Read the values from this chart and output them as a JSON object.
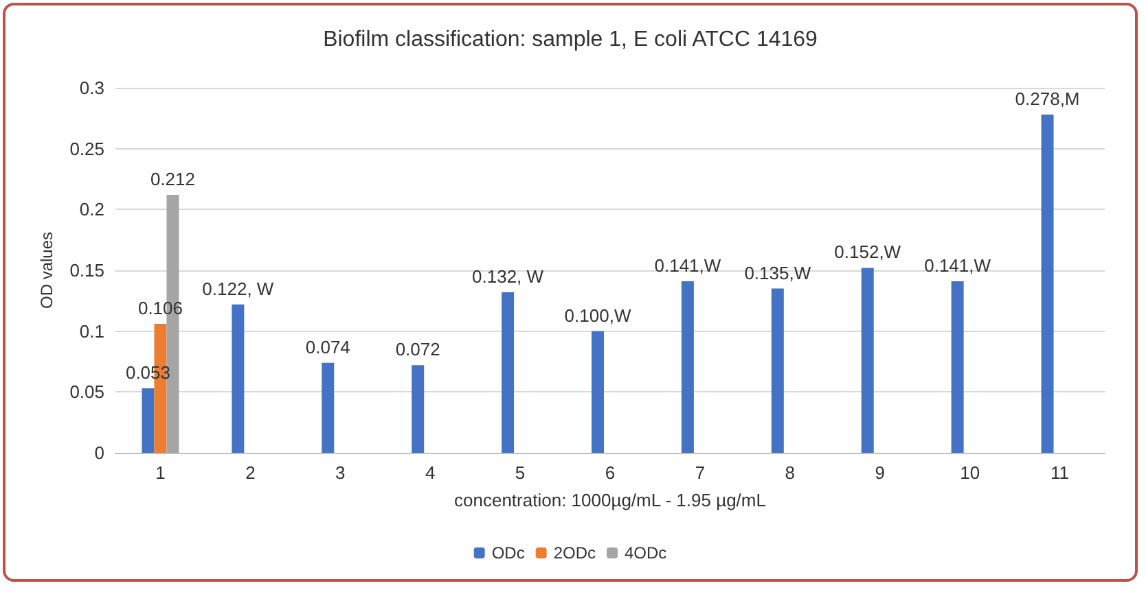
{
  "chart_data": {
    "type": "bar",
    "title": "Biofilm classification: sample 1, E coli ATCC 14169",
    "xlabel": "concentration: 1000µg/mL - 1.95 µg/mL",
    "ylabel": "OD values",
    "categories": [
      "1",
      "2",
      "3",
      "4",
      "5",
      "6",
      "7",
      "8",
      "9",
      "10",
      "11"
    ],
    "series": [
      {
        "name": "ODc",
        "color": "#4472c4",
        "values": [
          0.053,
          0.122,
          0.074,
          0.072,
          0.132,
          0.1,
          0.141,
          0.135,
          0.152,
          0.141,
          0.278
        ],
        "value_labels": [
          "0.053",
          "0.122, W",
          "0.074",
          "0.072",
          "0.132, W",
          "0.100,W",
          "0.141,W",
          "0.135,W",
          "0.152,W",
          "0.141,W",
          "0.278,M"
        ]
      },
      {
        "name": "2ODc",
        "color": "#ed7d31",
        "values": [
          0.106,
          null,
          null,
          null,
          null,
          null,
          null,
          null,
          null,
          null,
          null
        ],
        "value_labels": [
          "0.106",
          null,
          null,
          null,
          null,
          null,
          null,
          null,
          null,
          null,
          null
        ]
      },
      {
        "name": "4ODc",
        "color": "#a5a5a5",
        "values": [
          0.212,
          null,
          null,
          null,
          null,
          null,
          null,
          null,
          null,
          null,
          null
        ],
        "value_labels": [
          "0.212",
          null,
          null,
          null,
          null,
          null,
          null,
          null,
          null,
          null,
          null
        ]
      }
    ],
    "ylim": [
      0,
      0.3
    ],
    "yticks": [
      0,
      0.05,
      0.1,
      0.15,
      0.2,
      0.25,
      0.3
    ],
    "grid": "y",
    "legend": "bottom"
  }
}
